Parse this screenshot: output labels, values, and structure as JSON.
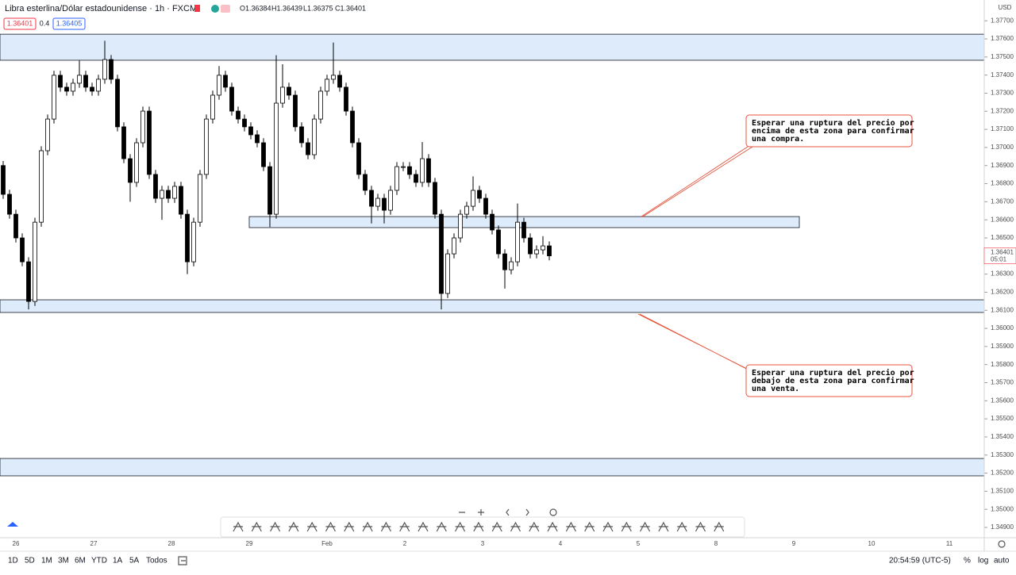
{
  "header": {
    "title": "Libra esterlina/Dólar estadounidense · 1h · FXCM",
    "ohlc": [
      "O1.36384",
      "H1.36439",
      "L1.36375",
      "C1.36401"
    ],
    "sell_price": "1.36401",
    "spread": "0.4",
    "buy_price": "1.36405"
  },
  "chart_data": {
    "type": "candlestick",
    "currency": "USD",
    "ylim": [
      1.34843,
      1.37815
    ],
    "yticks": [
      {
        "value": 1.377,
        "label": "1.37700"
      },
      {
        "value": 1.376,
        "label": "1.37600"
      },
      {
        "value": 1.375,
        "label": "1.37500"
      },
      {
        "value": 1.374,
        "label": "1.37400"
      },
      {
        "value": 1.373,
        "label": "1.37300"
      },
      {
        "value": 1.372,
        "label": "1.37200"
      },
      {
        "value": 1.371,
        "label": "1.37100"
      },
      {
        "value": 1.37,
        "label": "1.37000"
      },
      {
        "value": 1.369,
        "label": "1.36900"
      },
      {
        "value": 1.368,
        "label": "1.36800"
      },
      {
        "value": 1.367,
        "label": "1.36700"
      },
      {
        "value": 1.366,
        "label": "1.36600"
      },
      {
        "value": 1.365,
        "label": "1.36500"
      },
      {
        "value": 1.363,
        "label": "1.36300"
      },
      {
        "value": 1.362,
        "label": "1.36200"
      },
      {
        "value": 1.361,
        "label": "1.36100"
      },
      {
        "value": 1.36,
        "label": "1.36000"
      },
      {
        "value": 1.359,
        "label": "1.35900"
      },
      {
        "value": 1.358,
        "label": "1.35800"
      },
      {
        "value": 1.357,
        "label": "1.35700"
      },
      {
        "value": 1.356,
        "label": "1.35600"
      },
      {
        "value": 1.355,
        "label": "1.35500"
      },
      {
        "value": 1.354,
        "label": "1.35400"
      },
      {
        "value": 1.353,
        "label": "1.35300"
      },
      {
        "value": 1.352,
        "label": "1.35200"
      },
      {
        "value": 1.351,
        "label": "1.35100"
      },
      {
        "value": 1.35,
        "label": "1.35000"
      },
      {
        "value": 1.349,
        "label": "1.34900"
      }
    ],
    "last_price": {
      "value": 1.36401,
      "label": "1.36401"
    },
    "countdown": "05:01",
    "time_labels": [
      "26",
      "27",
      "28",
      "29",
      "Feb",
      "2",
      "3",
      "4",
      "5",
      "8",
      "9",
      "10",
      "11"
    ],
    "open": [
      1.369,
      1.36741,
      1.36631,
      1.365,
      1.36368,
      1.36149,
      1.36587,
      1.36982,
      1.37157,
      1.37399,
      1.37333,
      1.37311,
      1.37355,
      1.37399,
      1.37333,
      1.37311,
      1.37377,
      1.37486,
      1.37377,
      1.37114,
      1.36938,
      1.36807,
      1.37026,
      1.37201,
      1.36851,
      1.36719,
      1.36763,
      1.36719,
      1.36785,
      1.36631,
      1.36368,
      1.36587,
      1.36851,
      1.37157,
      1.37289,
      1.37399,
      1.37333,
      1.37201,
      1.37157,
      1.37114,
      1.3707,
      1.37026,
      1.36894,
      1.36631,
      1.37245,
      1.37333,
      1.37289,
      1.37114,
      1.37026,
      1.3696,
      1.37157,
      1.37311,
      1.37377,
      1.37399,
      1.37333,
      1.37201,
      1.37026,
      1.36851,
      1.36763,
      1.36675,
      1.36719,
      1.36653,
      1.36763,
      1.36894,
      1.36894,
      1.36851,
      1.36807,
      1.36938,
      1.36807,
      1.36631,
      1.36193,
      1.36412,
      1.365,
      1.36631,
      1.36675,
      1.36763,
      1.36719,
      1.36631,
      1.36544,
      1.36412,
      1.36324,
      1.36368,
      1.36587,
      1.365,
      1.36412,
      1.36434,
      1.36456
    ],
    "high": [
      1.36925,
      1.36766,
      1.36656,
      1.36525,
      1.36393,
      1.36612,
      1.37007,
      1.37182,
      1.37424,
      1.37424,
      1.37358,
      1.3738,
      1.3748,
      1.37424,
      1.37358,
      1.37402,
      1.3759,
      1.37511,
      1.37402,
      1.37139,
      1.36963,
      1.37051,
      1.37226,
      1.37226,
      1.36876,
      1.36788,
      1.36788,
      1.3681,
      1.3681,
      1.36656,
      1.36612,
      1.36876,
      1.37182,
      1.37314,
      1.3745,
      1.37424,
      1.37358,
      1.37226,
      1.37182,
      1.37139,
      1.37095,
      1.37051,
      1.36919,
      1.3751,
      1.3746,
      1.37358,
      1.37314,
      1.37139,
      1.37051,
      1.37182,
      1.37336,
      1.37402,
      1.3758,
      1.37424,
      1.37358,
      1.37226,
      1.37051,
      1.36876,
      1.36788,
      1.36744,
      1.36744,
      1.36788,
      1.36919,
      1.36919,
      1.36919,
      1.36876,
      1.3703,
      1.36963,
      1.36832,
      1.36656,
      1.36437,
      1.36525,
      1.36656,
      1.367,
      1.3684,
      1.36788,
      1.36744,
      1.36656,
      1.36569,
      1.36437,
      1.36393,
      1.3669,
      1.36612,
      1.36525,
      1.36459,
      1.3651,
      1.36481
    ],
    "low": [
      1.36716,
      1.36606,
      1.36475,
      1.36343,
      1.36105,
      1.36124,
      1.36562,
      1.36957,
      1.37132,
      1.37308,
      1.37286,
      1.37286,
      1.3733,
      1.37308,
      1.37286,
      1.37286,
      1.37352,
      1.37352,
      1.37089,
      1.36913,
      1.367,
      1.36782,
      1.37001,
      1.36826,
      1.36694,
      1.366,
      1.36694,
      1.36694,
      1.36606,
      1.363,
      1.36343,
      1.36562,
      1.36826,
      1.37132,
      1.37264,
      1.37308,
      1.37176,
      1.37132,
      1.37089,
      1.37045,
      1.37001,
      1.36869,
      1.3656,
      1.36606,
      1.3722,
      1.37264,
      1.37089,
      1.37001,
      1.36935,
      1.36935,
      1.37132,
      1.37286,
      1.37352,
      1.37308,
      1.37176,
      1.37001,
      1.36826,
      1.36738,
      1.3658,
      1.3665,
      1.3658,
      1.36628,
      1.36738,
      1.36869,
      1.36826,
      1.36782,
      1.36782,
      1.36782,
      1.36606,
      1.36105,
      1.36168,
      1.36387,
      1.36475,
      1.36606,
      1.3665,
      1.36694,
      1.36606,
      1.36519,
      1.36387,
      1.3622,
      1.36299,
      1.36343,
      1.36475,
      1.36387,
      1.36387,
      1.36409,
      1.36376
    ],
    "close": [
      1.36741,
      1.36631,
      1.365,
      1.36368,
      1.36149,
      1.36587,
      1.36982,
      1.37157,
      1.37399,
      1.37333,
      1.37311,
      1.37355,
      1.37399,
      1.37333,
      1.37311,
      1.37377,
      1.37486,
      1.37377,
      1.37114,
      1.36938,
      1.36807,
      1.37026,
      1.37201,
      1.36851,
      1.36719,
      1.36763,
      1.36719,
      1.36785,
      1.36631,
      1.36368,
      1.36587,
      1.36851,
      1.37157,
      1.37289,
      1.37399,
      1.37333,
      1.37201,
      1.37157,
      1.37114,
      1.3707,
      1.37026,
      1.36894,
      1.36631,
      1.37245,
      1.37333,
      1.37289,
      1.37114,
      1.37026,
      1.3696,
      1.37157,
      1.37311,
      1.37377,
      1.37399,
      1.37333,
      1.37201,
      1.37026,
      1.36851,
      1.36763,
      1.36675,
      1.36719,
      1.36653,
      1.36763,
      1.36894,
      1.36894,
      1.36851,
      1.36807,
      1.36938,
      1.36807,
      1.36631,
      1.36193,
      1.36412,
      1.365,
      1.36631,
      1.36675,
      1.36763,
      1.36719,
      1.36631,
      1.36544,
      1.36412,
      1.36324,
      1.36368,
      1.36587,
      1.365,
      1.36412,
      1.36434,
      1.36456,
      1.36401
    ],
    "zones": [
      {
        "top": 1.37626,
        "bottom": 1.37482
      },
      {
        "top": 1.36618,
        "bottom": 1.36557
      },
      {
        "top": 1.36158,
        "bottom": 1.36088
      },
      {
        "top": 1.35281,
        "bottom": 1.35185
      }
    ]
  },
  "annotations": [
    {
      "lines": [
        "Esperar una ruptura del precio por",
        "encima de esta zona para confirmar",
        "una compra."
      ]
    },
    {
      "lines": [
        "Esperar una ruptura del precio por",
        "debajo de esta zona para confirmar",
        "una venta."
      ]
    }
  ],
  "footer": {
    "ranges": [
      "1D",
      "5D",
      "1M",
      "3M",
      "6M",
      "YTD",
      "1A",
      "5A",
      "Todos"
    ],
    "clock": "20:54:59 (UTC-5)",
    "options": [
      "%",
      "log",
      "auto"
    ]
  }
}
